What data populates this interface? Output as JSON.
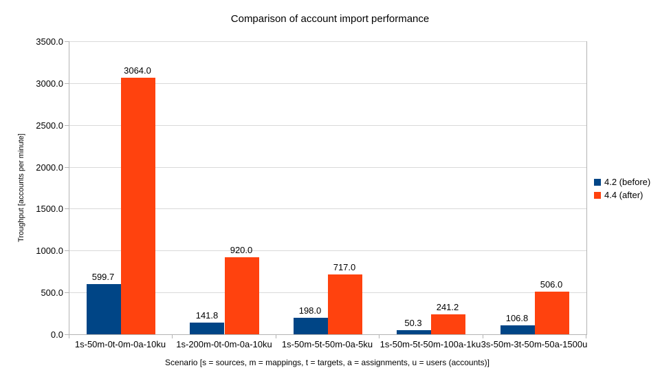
{
  "chart_data": {
    "type": "bar",
    "title": "Comparison of account import performance",
    "xlabel": "Scenario [s = sources, m = mappings, t = targets, a = assignments, u = users (accounts)]",
    "ylabel": "Troughput [accounts per minute]",
    "categories": [
      "1s-50m-0t-0m-0a-10ku",
      "1s-200m-0t-0m-0a-10ku",
      "1s-50m-5t-50m-0a-5ku",
      "1s-50m-5t-50m-100a-1ku",
      "3s-50m-3t-50m-50a-1500u"
    ],
    "series": [
      {
        "name": "4.2 (before)",
        "color": "#004586",
        "values": [
          599.7,
          141.8,
          198.0,
          50.3,
          106.8
        ]
      },
      {
        "name": "4.4 (after)",
        "color": "#FF420E",
        "values": [
          3064.0,
          920.0,
          717.0,
          241.2,
          506.0
        ]
      }
    ],
    "ylim": [
      0,
      3500
    ],
    "ytick_step": 500,
    "ytick_labels": [
      "0.0",
      "500.0",
      "1000.0",
      "1500.0",
      "2000.0",
      "2500.0",
      "3000.0",
      "3500.0"
    ],
    "grid": true,
    "legend_position": "right",
    "colors": {
      "gridline": "#d9d9d9",
      "axis": "#b3b3b3",
      "text": "#000000",
      "background": "#ffffff"
    }
  }
}
